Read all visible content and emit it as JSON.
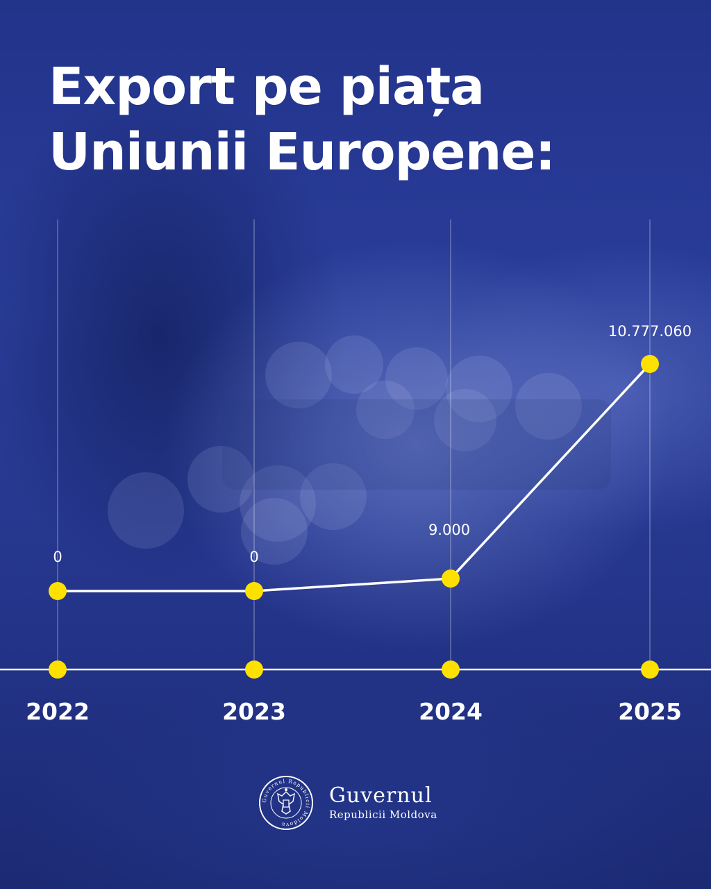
{
  "title_lines": [
    "Export pe piața",
    "Uniunii Europene:"
  ],
  "chart_data": {
    "type": "line",
    "title": "Export pe piața Uniunii Europene:",
    "categories": [
      "2022",
      "2023",
      "2024",
      "2025"
    ],
    "values": [
      0,
      0,
      9000,
      10777060
    ],
    "value_labels": [
      "0",
      "0",
      "9.000",
      "10.777.060"
    ],
    "xlabel": "",
    "ylabel": "",
    "grid": "vertical",
    "legend": "none",
    "colors": {
      "line": "#ffffff",
      "marker": "#ffe100",
      "axis": "#ffffff",
      "gridline": "#ffffff"
    }
  },
  "footer": {
    "logo_name": "Guvernul",
    "logo_sub": "Republicii Moldova",
    "seal_text": "Guvernul Republicii Moldova"
  }
}
